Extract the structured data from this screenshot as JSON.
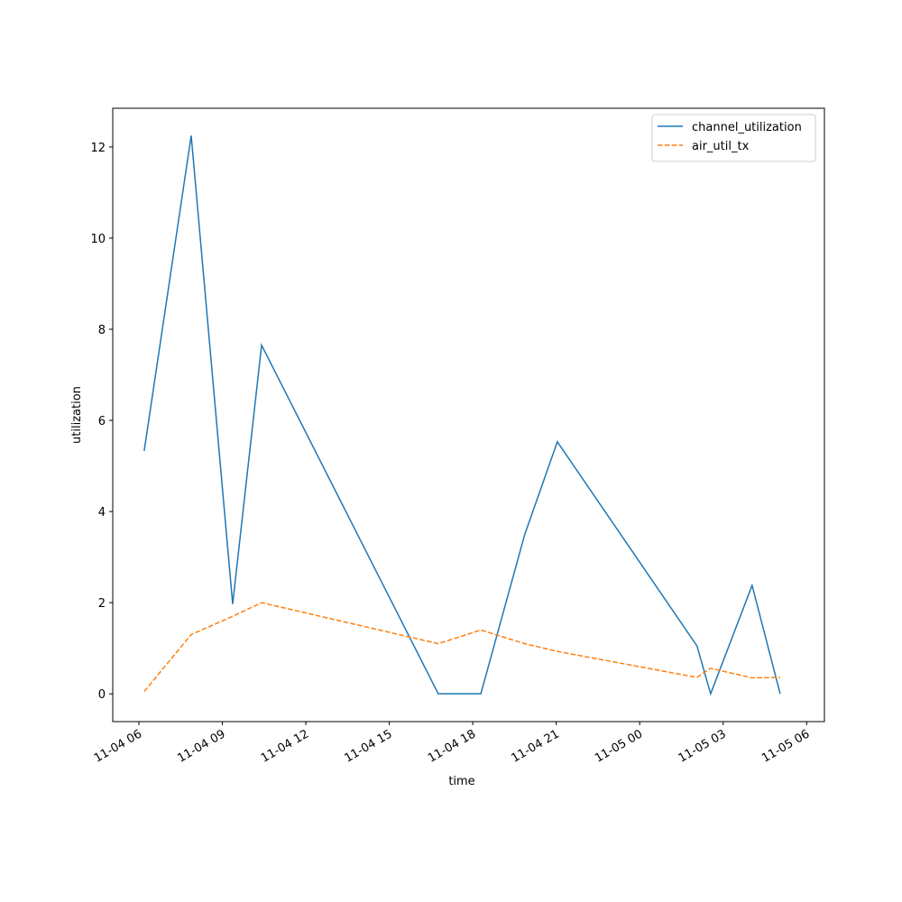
{
  "chart_data": {
    "type": "line",
    "xlabel": "time",
    "ylabel": "utilization",
    "x": [
      6.19,
      7.88,
      9.37,
      10.41,
      16.76,
      18.29,
      19.87,
      21.04,
      26.06,
      26.55,
      28.04,
      29.05
    ],
    "series": [
      {
        "name": "channel_utilization",
        "color": "#1f77b4",
        "linestyle": "solid",
        "values": [
          5.33,
          12.25,
          1.97,
          7.65,
          0,
          0,
          3.5,
          5.53,
          1.05,
          0,
          2.38,
          0
        ]
      },
      {
        "name": "air_util_tx",
        "color": "#ff7f0e",
        "linestyle": "dashed",
        "values": [
          0.05,
          1.3,
          1.7,
          2.0,
          1.1,
          1.4,
          1.1,
          0.93,
          0.36,
          0.56,
          0.35,
          0.36
        ]
      }
    ],
    "xlim": [
      5.06,
      30.64
    ],
    "xticks": [
      {
        "value": 6,
        "label": "11-04 06"
      },
      {
        "value": 9,
        "label": "11-04 09"
      },
      {
        "value": 12,
        "label": "11-04 12"
      },
      {
        "value": 15,
        "label": "11-04 15"
      },
      {
        "value": 18,
        "label": "11-04 18"
      },
      {
        "value": 21,
        "label": "11-04 21"
      },
      {
        "value": 24,
        "label": "11-05 00"
      },
      {
        "value": 27,
        "label": "11-05 03"
      },
      {
        "value": 30,
        "label": "11-05 06"
      }
    ],
    "ylim": [
      -0.61,
      12.85
    ],
    "yticks": [
      0,
      2,
      4,
      6,
      8,
      10,
      12
    ],
    "legend": "upper right"
  }
}
